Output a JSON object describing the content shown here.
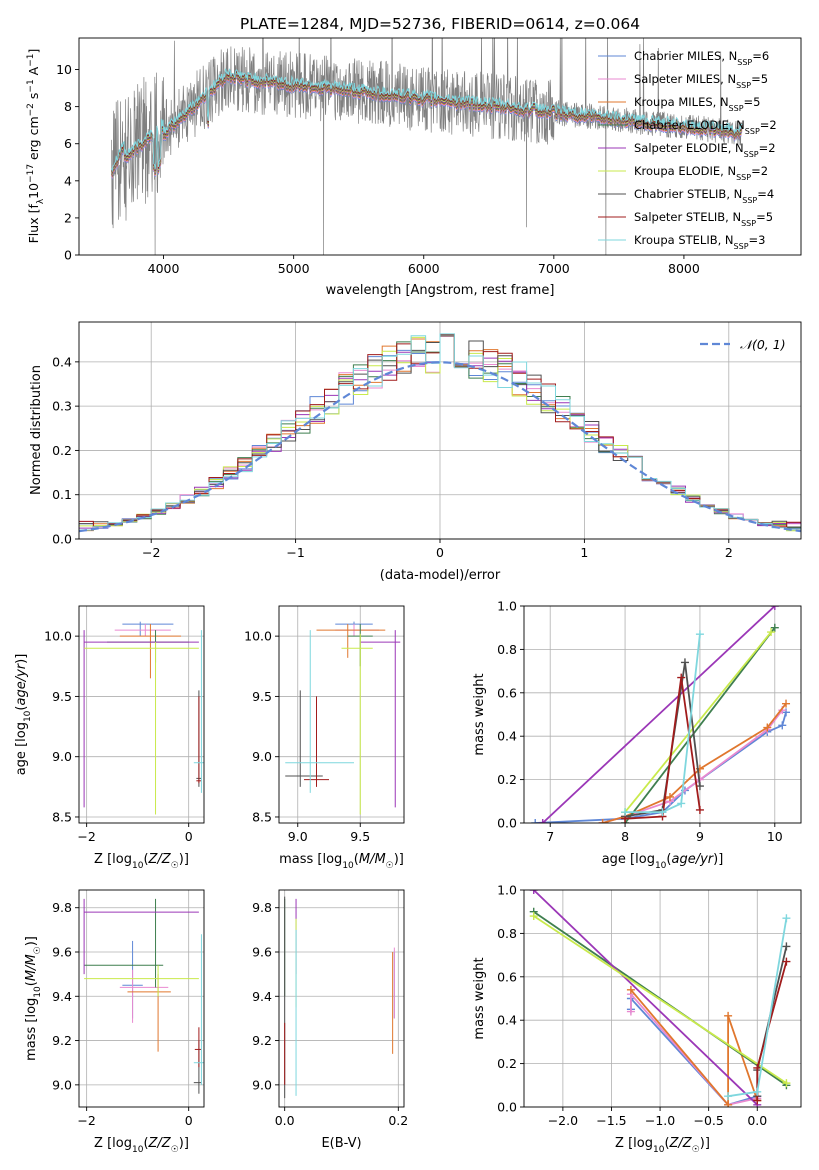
{
  "figure": {
    "title": "PLATE=1284, MJD=52736, FIBERID=0614, z=0.064",
    "series_colors": [
      "#5f87d6",
      "#e98ad0",
      "#e0772e",
      "#3f7f4f",
      "#9b37b7",
      "#c9ea4c",
      "#505050",
      "#a11c1c",
      "#7fd7de"
    ]
  },
  "chart_data": [
    {
      "id": "spectrum",
      "type": "line",
      "xlabel": "wavelength [Angstrom, rest frame]",
      "ylabel": "Flux [f_λ10⁻¹⁷ erg cm⁻² s⁻¹ A⁻¹]",
      "xlim": [
        3350,
        8900
      ],
      "ylim": [
        0,
        11.7
      ],
      "xticks": [
        4000,
        5000,
        6000,
        7000,
        8000
      ],
      "yticks": [
        0,
        2,
        4,
        6,
        8,
        10
      ],
      "grid": false,
      "legend_position": "top-right",
      "data_wavelength_range": [
        3600,
        8450
      ],
      "data_color": "#808080",
      "model_wavelength_range": [
        3600,
        8450
      ],
      "series": [
        {
          "name": "Chabrier MILES, N_SSP=6"
        },
        {
          "name": "Salpeter MILES, N_SSP=5"
        },
        {
          "name": "Kroupa MILES, N_SSP=5"
        },
        {
          "name": "Chabrier ELODIE, N_SSP=2"
        },
        {
          "name": "Salpeter ELODIE, N_SSP=2"
        },
        {
          "name": "Kroupa ELODIE, N_SSP=2"
        },
        {
          "name": "Chabrier STELIB, N_SSP=4"
        },
        {
          "name": "Salpeter STELIB, N_SSP=5"
        },
        {
          "name": "Kroupa STELIB, N_SSP=3"
        }
      ],
      "legend_labels": [
        [
          "Chabrier MILES, N",
          "SSP",
          "=6"
        ],
        [
          "Salpeter MILES, N",
          "SSP",
          "=5"
        ],
        [
          "Kroupa MILES, N",
          "SSP",
          "=5"
        ],
        [
          "Chabrier ELODIE, N",
          "SSP",
          "=2"
        ],
        [
          "Salpeter ELODIE, N",
          "SSP",
          "=2"
        ],
        [
          "Kroupa ELODIE, N",
          "SSP",
          "=2"
        ],
        [
          "Chabrier STELIB, N",
          "SSP",
          "=4"
        ],
        [
          "Salpeter STELIB, N",
          "SSP",
          "=5"
        ],
        [
          "Kroupa STELIB, N",
          "SSP",
          "=3"
        ]
      ],
      "ylabel_parts": [
        "Flux [f",
        "λ",
        "10",
        "−17",
        " erg cm",
        "−2",
        " s",
        "−1",
        " A",
        "−1",
        "]"
      ]
    },
    {
      "id": "residuals",
      "type": "step-histogram",
      "xlabel": "(data-model)/error",
      "ylabel": "Normed distribution",
      "xlim": [
        -2.5,
        2.5
      ],
      "ylim": [
        0,
        0.49
      ],
      "xticks": [
        -2,
        -1,
        0,
        1,
        2
      ],
      "yticks": [
        0.0,
        0.1,
        0.2,
        0.3,
        0.4
      ],
      "bin_width": 0.1,
      "grid": true,
      "legend_position": "top-right",
      "reference_curve": {
        "name": "𝒩(0, 1)",
        "type": "gaussian",
        "mean": 0,
        "sigma": 1,
        "color": "#5f87d6",
        "dash": true
      },
      "histogram_peak": 0.42
    },
    {
      "id": "age_vs_Z",
      "type": "errorbar",
      "xlabel": "Z [log₁₀(Z/Z☉)]",
      "ylabel": "age  [log₁₀(age/yr)]",
      "xlim": [
        -2.15,
        0.3
      ],
      "ylim": [
        8.45,
        10.25
      ],
      "xticks": [
        -2,
        0
      ],
      "yticks": [
        8.5,
        9.0,
        9.5,
        10.0
      ],
      "grid": true,
      "points": [
        {
          "x": -0.95,
          "y": 10.1,
          "xlo": -1.3,
          "xhi": -0.3,
          "ylo": 10.0,
          "yhi": 10.12
        },
        {
          "x": -0.85,
          "y": 10.05,
          "xlo": -1.45,
          "xhi": -0.35,
          "ylo": 10.0,
          "yhi": 10.1
        },
        {
          "x": -0.75,
          "y": 10.0,
          "xlo": -1.35,
          "xhi": -0.15,
          "ylo": 9.65,
          "yhi": 10.1
        },
        {
          "x": -0.65,
          "y": 9.95,
          "xlo": -1.6,
          "xhi": 0.0,
          "ylo": 9.78,
          "yhi": 10.05
        },
        {
          "x": -2.05,
          "y": 9.95,
          "xlo": -2.05,
          "xhi": 0.2,
          "ylo": 8.58,
          "yhi": 10.05
        },
        {
          "x": -0.65,
          "y": 9.9,
          "xlo": -2.05,
          "xhi": 0.2,
          "ylo": 8.52,
          "yhi": 9.95
        },
        {
          "x": 0.2,
          "y": 8.82,
          "xlo": 0.15,
          "xhi": 0.25,
          "ylo": 8.75,
          "yhi": 9.55
        },
        {
          "x": 0.2,
          "y": 8.8,
          "xlo": 0.15,
          "xhi": 0.25,
          "ylo": 8.78,
          "yhi": 9.5
        },
        {
          "x": 0.25,
          "y": 8.95,
          "xlo": 0.1,
          "xhi": 0.3,
          "ylo": 8.7,
          "yhi": 10.05
        }
      ]
    },
    {
      "id": "age_vs_mass",
      "type": "errorbar",
      "xlabel": "mass [log₁₀(M/M☉)]",
      "ylabel": "",
      "xlim": [
        8.85,
        9.85
      ],
      "ylim": [
        8.45,
        10.25
      ],
      "xticks": [
        9.0,
        9.5
      ],
      "yticks": [
        8.5,
        9.0,
        9.5,
        10.0
      ],
      "grid": true,
      "points": [
        {
          "x": 9.45,
          "y": 10.1,
          "xlo": 9.3,
          "xhi": 9.6,
          "ylo": 10.0,
          "yhi": 10.12
        },
        {
          "x": 9.45,
          "y": 10.05,
          "xlo": 9.3,
          "xhi": 9.65,
          "ylo": 10.0,
          "yhi": 10.1
        },
        {
          "x": 9.4,
          "y": 10.05,
          "xlo": 9.15,
          "xhi": 9.7,
          "ylo": 9.82,
          "yhi": 10.1
        },
        {
          "x": 9.5,
          "y": 10.0,
          "xlo": 9.4,
          "xhi": 9.6,
          "ylo": 9.75,
          "yhi": 10.1
        },
        {
          "x": 9.78,
          "y": 9.95,
          "xlo": 9.5,
          "xhi": 9.82,
          "ylo": 8.58,
          "yhi": 10.05
        },
        {
          "x": 9.5,
          "y": 9.9,
          "xlo": 9.35,
          "xhi": 9.6,
          "ylo": 8.52,
          "yhi": 10.02
        },
        {
          "x": 9.02,
          "y": 8.84,
          "xlo": 8.9,
          "xhi": 9.2,
          "ylo": 8.75,
          "yhi": 9.55
        },
        {
          "x": 9.15,
          "y": 8.81,
          "xlo": 9.05,
          "xhi": 9.25,
          "ylo": 8.75,
          "yhi": 9.5
        },
        {
          "x": 9.1,
          "y": 8.95,
          "xlo": 8.9,
          "xhi": 9.45,
          "ylo": 8.7,
          "yhi": 10.05
        }
      ]
    },
    {
      "id": "weight_vs_age",
      "type": "line",
      "xlabel": "age  [log₁₀(age/yr)]",
      "ylabel": "mass weight",
      "xlim": [
        6.65,
        10.35
      ],
      "ylim": [
        0,
        1.0
      ],
      "xticks": [
        7,
        8,
        9,
        10
      ],
      "yticks": [
        0.0,
        0.2,
        0.4,
        0.6,
        0.8,
        1.0
      ],
      "grid": true,
      "series": [
        {
          "name": "Chabrier MILES",
          "x": [
            6.8,
            8.0,
            8.5,
            8.8,
            9.9,
            10.1,
            10.15
          ],
          "y": [
            0.0,
            0.02,
            0.05,
            0.15,
            0.42,
            0.45,
            0.51
          ]
        },
        {
          "name": "Salpeter MILES",
          "x": [
            7.7,
            8.0,
            8.6,
            9.0,
            9.9,
            10.1
          ],
          "y": [
            0.0,
            0.03,
            0.1,
            0.2,
            0.43,
            0.52
          ]
        },
        {
          "name": "Kroupa MILES",
          "x": [
            7.7,
            8.0,
            8.6,
            9.0,
            9.9,
            10.15
          ],
          "y": [
            0.0,
            0.03,
            0.12,
            0.25,
            0.44,
            0.55
          ]
        },
        {
          "name": "Chabrier ELODIE",
          "x": [
            8.0,
            10.0
          ],
          "y": [
            0.0,
            0.9
          ]
        },
        {
          "name": "Salpeter ELODIE",
          "x": [
            6.9,
            10.0
          ],
          "y": [
            0.0,
            1.0
          ]
        },
        {
          "name": "Kroupa ELODIE",
          "x": [
            8.0,
            9.95
          ],
          "y": [
            0.05,
            0.88
          ]
        },
        {
          "name": "Chabrier STELIB",
          "x": [
            8.0,
            8.5,
            8.8,
            9.0
          ],
          "y": [
            0.03,
            0.06,
            0.74,
            0.17
          ]
        },
        {
          "name": "Salpeter STELIB",
          "x": [
            8.0,
            8.5,
            8.75,
            9.0
          ],
          "y": [
            0.02,
            0.03,
            0.67,
            0.06
          ]
        },
        {
          "name": "Kroupa STELIB",
          "x": [
            8.0,
            8.5,
            8.75,
            9.0
          ],
          "y": [
            0.05,
            0.05,
            0.09,
            0.87
          ]
        }
      ]
    },
    {
      "id": "mass_vs_Z",
      "type": "errorbar",
      "xlabel": "Z [log₁₀(Z/Z☉)]",
      "ylabel": "mass [log₁₀(M/M☉)]",
      "xlim": [
        -2.15,
        0.3
      ],
      "ylim": [
        8.9,
        9.88
      ],
      "xticks": [
        -2,
        0
      ],
      "yticks": [
        9.0,
        9.2,
        9.4,
        9.6,
        9.8
      ],
      "grid": true,
      "points": [
        {
          "x": -1.1,
          "y": 9.45,
          "xlo": -1.3,
          "xhi": -0.9,
          "ylo": 9.3,
          "yhi": 9.65
        },
        {
          "x": -1.1,
          "y": 9.44,
          "xlo": -1.35,
          "xhi": -0.4,
          "ylo": 9.28,
          "yhi": 9.52
        },
        {
          "x": -0.6,
          "y": 9.42,
          "xlo": -1.2,
          "xhi": -0.35,
          "ylo": 9.15,
          "yhi": 9.5
        },
        {
          "x": -0.65,
          "y": 9.54,
          "xlo": -2.05,
          "xhi": -0.5,
          "ylo": 9.44,
          "yhi": 9.84
        },
        {
          "x": -2.05,
          "y": 9.78,
          "xlo": -2.05,
          "xhi": 0.2,
          "ylo": 9.5,
          "yhi": 9.84
        },
        {
          "x": -0.6,
          "y": 9.48,
          "xlo": -2.05,
          "xhi": 0.2,
          "ylo": 9.4,
          "yhi": 9.54
        },
        {
          "x": 0.2,
          "y": 9.01,
          "xlo": 0.1,
          "xhi": 0.25,
          "ylo": 8.96,
          "yhi": 9.2
        },
        {
          "x": 0.2,
          "y": 9.16,
          "xlo": 0.12,
          "xhi": 0.25,
          "ylo": 9.08,
          "yhi": 9.26
        },
        {
          "x": 0.25,
          "y": 9.1,
          "xlo": 0.1,
          "xhi": 0.3,
          "ylo": 9.0,
          "yhi": 9.68
        }
      ]
    },
    {
      "id": "mass_vs_ebv",
      "type": "errorbar",
      "xlabel": "E(B-V)",
      "ylabel": "",
      "xlim": [
        -0.01,
        0.21
      ],
      "ylim": [
        8.9,
        9.88
      ],
      "xticks": [
        0.0,
        0.2
      ],
      "yticks": [
        9.0,
        9.2,
        9.4,
        9.6,
        9.8
      ],
      "grid": true,
      "points": [
        {
          "x": 0.193,
          "y": 9.45,
          "ylo": 9.3,
          "yhi": 9.6
        },
        {
          "x": 0.193,
          "y": 9.44,
          "ylo": 9.3,
          "yhi": 9.62
        },
        {
          "x": 0.19,
          "y": 9.42,
          "ylo": 9.14,
          "yhi": 9.6
        },
        {
          "x": 0.0,
          "y": 9.54,
          "ylo": 9.4,
          "yhi": 9.84
        },
        {
          "x": 0.02,
          "y": 9.78,
          "ylo": 9.5,
          "yhi": 9.84
        },
        {
          "x": 0.02,
          "y": 9.48,
          "ylo": 9.35,
          "yhi": 9.75
        },
        {
          "x": 0.0,
          "y": 9.01,
          "ylo": 8.94,
          "yhi": 9.85
        },
        {
          "x": 0.0,
          "y": 9.16,
          "ylo": 9.0,
          "yhi": 9.28
        },
        {
          "x": 0.02,
          "y": 9.1,
          "ylo": 8.95,
          "yhi": 9.7
        }
      ]
    },
    {
      "id": "weight_vs_Z",
      "type": "line",
      "xlabel": "Z [log₁₀(Z/Z☉)]",
      "ylabel": "mass weight",
      "xlim": [
        -2.4,
        0.45
      ],
      "ylim": [
        0,
        1.0
      ],
      "xticks": [
        -2.0,
        -1.5,
        -1.0,
        -0.5,
        0.0
      ],
      "yticks": [
        0.0,
        0.2,
        0.4,
        0.6,
        0.8,
        1.0
      ],
      "grid": true,
      "series": [
        {
          "name": "Chabrier MILES",
          "x": [
            -1.3,
            -1.3,
            -0.3,
            0.0
          ],
          "y": [
            0.45,
            0.5,
            0.01,
            0.05
          ]
        },
        {
          "name": "Salpeter MILES",
          "x": [
            -1.3,
            -1.3,
            -0.3,
            0.0
          ],
          "y": [
            0.44,
            0.52,
            0.01,
            0.04
          ]
        },
        {
          "name": "Kroupa MILES",
          "x": [
            -1.3,
            -0.3,
            -0.3,
            0.0
          ],
          "y": [
            0.54,
            0.01,
            0.42,
            0.03
          ]
        },
        {
          "name": "Chabrier ELODIE",
          "x": [
            -2.3,
            0.3
          ],
          "y": [
            0.9,
            0.1
          ]
        },
        {
          "name": "Salpeter ELODIE",
          "x": [
            -2.3,
            0.0
          ],
          "y": [
            1.0,
            0.01
          ]
        },
        {
          "name": "Kroupa ELODIE",
          "x": [
            -2.3,
            0.3
          ],
          "y": [
            0.88,
            0.11
          ]
        },
        {
          "name": "Chabrier STELIB",
          "x": [
            0.0,
            0.0,
            0.3
          ],
          "y": [
            0.05,
            0.17,
            0.74
          ]
        },
        {
          "name": "Salpeter STELIB",
          "x": [
            0.0,
            0.0,
            0.3
          ],
          "y": [
            0.03,
            0.18,
            0.67
          ]
        },
        {
          "name": "Kroupa STELIB",
          "x": [
            -0.3,
            0.0,
            0.3
          ],
          "y": [
            0.05,
            0.07,
            0.87
          ]
        }
      ]
    }
  ]
}
